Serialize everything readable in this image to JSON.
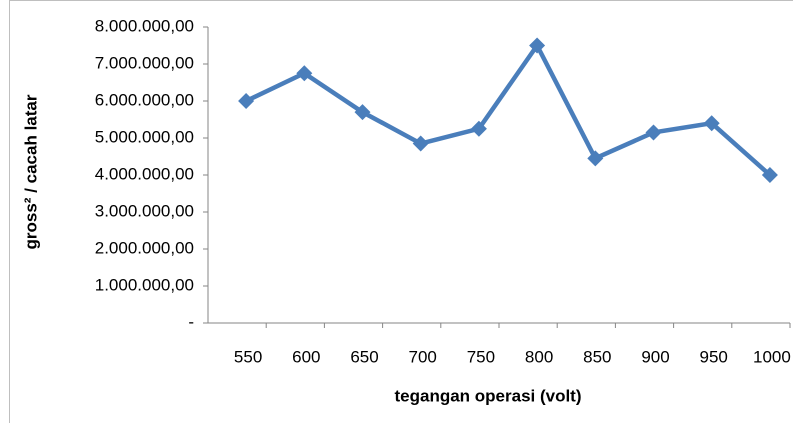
{
  "chart_data": {
    "type": "line",
    "x_label": "tegangan operasi (volt)",
    "y_label": "gross² / cacah latar",
    "categories": [
      "550",
      "600",
      "650",
      "700",
      "750",
      "800",
      "850",
      "900",
      "950",
      "1000"
    ],
    "series": [
      {
        "name": "gross² / cacah latar",
        "color": "#4a7ebb",
        "values": [
          6000000,
          6750000,
          5700000,
          4850000,
          5250000,
          7500000,
          4450000,
          5150000,
          5400000,
          4000000
        ]
      }
    ],
    "ylim": [
      0,
      8000000
    ],
    "yticks": [
      {
        "value": 0,
        "label": "-"
      },
      {
        "value": 1000000,
        "label": "1.000.000,00"
      },
      {
        "value": 2000000,
        "label": "2.000.000,00"
      },
      {
        "value": 3000000,
        "label": "3.000.000,00"
      },
      {
        "value": 4000000,
        "label": "4.000.000,00"
      },
      {
        "value": 5000000,
        "label": "5.000.000,00"
      },
      {
        "value": 6000000,
        "label": "6.000.000,00"
      },
      {
        "value": 7000000,
        "label": "7.000.000,00"
      },
      {
        "value": 8000000,
        "label": "8.000.000,00"
      }
    ],
    "grid": false
  }
}
